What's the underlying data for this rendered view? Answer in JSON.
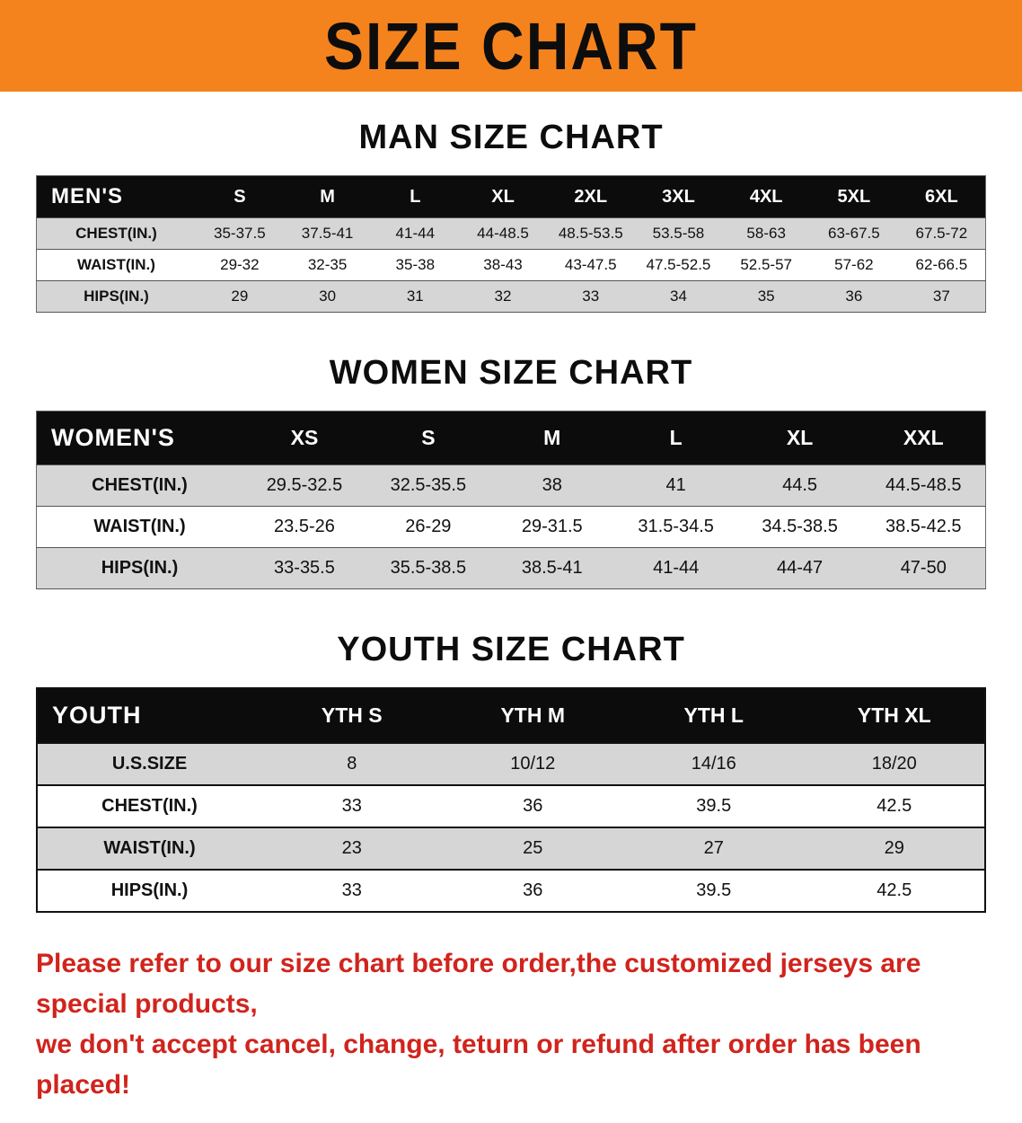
{
  "banner": {
    "title": "SIZE CHART",
    "bg_color": "#f5831d",
    "text_color": "#0d0d0d"
  },
  "sections": {
    "men": {
      "title": "MAN SIZE CHART",
      "header": {
        "label": "MEN'S",
        "cols": [
          "S",
          "M",
          "L",
          "XL",
          "2XL",
          "3XL",
          "4XL",
          "5XL",
          "6XL"
        ]
      },
      "rows": [
        {
          "label": "CHEST(IN.)",
          "values": [
            "35-37.5",
            "37.5-41",
            "41-44",
            "44-48.5",
            "48.5-53.5",
            "53.5-58",
            "58-63",
            "63-67.5",
            "67.5-72"
          ]
        },
        {
          "label": "WAIST(IN.)",
          "values": [
            "29-32",
            "32-35",
            "35-38",
            "38-43",
            "43-47.5",
            "47.5-52.5",
            "52.5-57",
            "57-62",
            "62-66.5"
          ]
        },
        {
          "label": "HIPS(IN.)",
          "values": [
            "29",
            "30",
            "31",
            "32",
            "33",
            "34",
            "35",
            "36",
            "37"
          ]
        }
      ]
    },
    "women": {
      "title": "WOMEN SIZE CHART",
      "header": {
        "label": "WOMEN'S",
        "cols": [
          "XS",
          "S",
          "M",
          "L",
          "XL",
          "XXL"
        ]
      },
      "rows": [
        {
          "label": "CHEST(IN.)",
          "values": [
            "29.5-32.5",
            "32.5-35.5",
            "38",
            "41",
            "44.5",
            "44.5-48.5"
          ]
        },
        {
          "label": "WAIST(IN.)",
          "values": [
            "23.5-26",
            "26-29",
            "29-31.5",
            "31.5-34.5",
            "34.5-38.5",
            "38.5-42.5"
          ]
        },
        {
          "label": "HIPS(IN.)",
          "values": [
            "33-35.5",
            "35.5-38.5",
            "38.5-41",
            "41-44",
            "44-47",
            "47-50"
          ]
        }
      ]
    },
    "youth": {
      "title": "YOUTH SIZE CHART",
      "header": {
        "label": "YOUTH",
        "cols": [
          "YTH S",
          "YTH M",
          "YTH L",
          "YTH XL"
        ]
      },
      "rows": [
        {
          "label": "U.S.SIZE",
          "values": [
            "8",
            "10/12",
            "14/16",
            "18/20"
          ]
        },
        {
          "label": "CHEST(IN.)",
          "values": [
            "33",
            "36",
            "39.5",
            "42.5"
          ]
        },
        {
          "label": "WAIST(IN.)",
          "values": [
            "23",
            "25",
            "27",
            "29"
          ]
        },
        {
          "label": "HIPS(IN.)",
          "values": [
            "33",
            "36",
            "39.5",
            "42.5"
          ]
        }
      ]
    }
  },
  "disclaimer": {
    "line1": "Please refer to our size chart before order,the customized jerseys are special products,",
    "line2": "we don't accept cancel, change, teturn or refund after order has been placed!",
    "text_color": "#d0241d"
  }
}
